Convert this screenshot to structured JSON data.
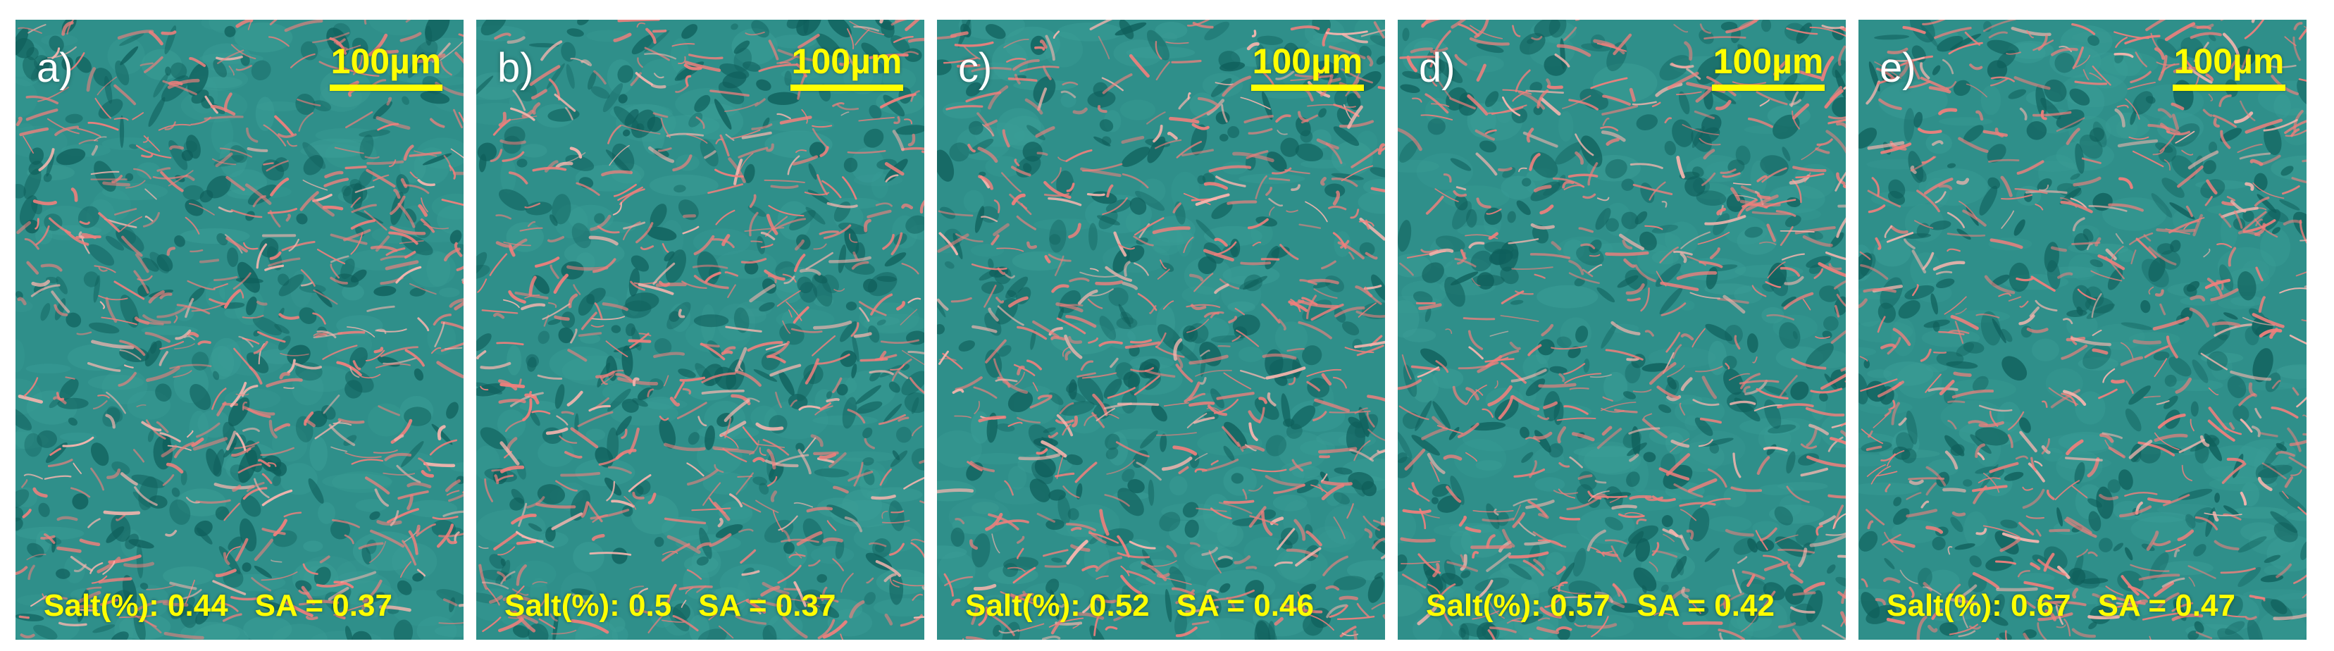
{
  "colors": {
    "background_tealish": "#2f8f8a",
    "dark_teal": "#0f5f5b",
    "mid_teal": "#3a9d96",
    "fiber_pink": "#f07f7c",
    "fiber_light": "#f9b5ae",
    "label_yellow": "#ffff00",
    "letter_white": "#ffffff"
  },
  "panels": [
    {
      "letter": "a)",
      "scale": "100µm",
      "salt": "Salt(%): 0.44",
      "sa": "SA = 0.37"
    },
    {
      "letter": "b)",
      "scale": "100µm",
      "salt": "Salt(%): 0.5",
      "sa": "SA = 0.37"
    },
    {
      "letter": "c)",
      "scale": "100µm",
      "salt": "Salt(%): 0.52",
      "sa": "SA = 0.46"
    },
    {
      "letter": "d)",
      "scale": "100µm",
      "salt": "Salt(%): 0.57",
      "sa": "SA = 0.42"
    },
    {
      "letter": "e)",
      "scale": "100µm",
      "salt": "Salt(%): 0.67",
      "sa": "SA = 0.47"
    }
  ]
}
